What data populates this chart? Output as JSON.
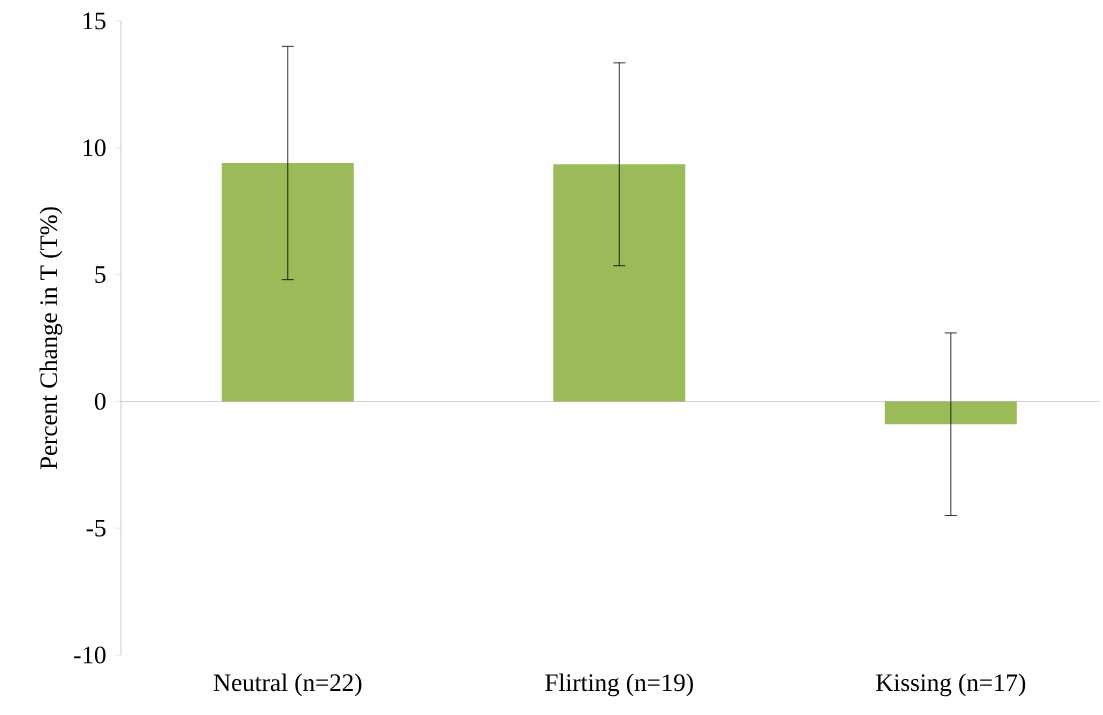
{
  "chart_data": {
    "type": "bar",
    "ylabel": "Percent Change in T (T%)",
    "categories": [
      "Neutral (n=22)",
      "Flirting (n=19)",
      "Kissing (n=17)"
    ],
    "values": [
      9.4,
      9.35,
      -0.9
    ],
    "errors": [
      4.6,
      4.0,
      3.6
    ],
    "color": "#9bbb59",
    "ylim": [
      -10,
      15
    ],
    "yticks": [
      -10,
      -5,
      0,
      5,
      10,
      15
    ]
  }
}
